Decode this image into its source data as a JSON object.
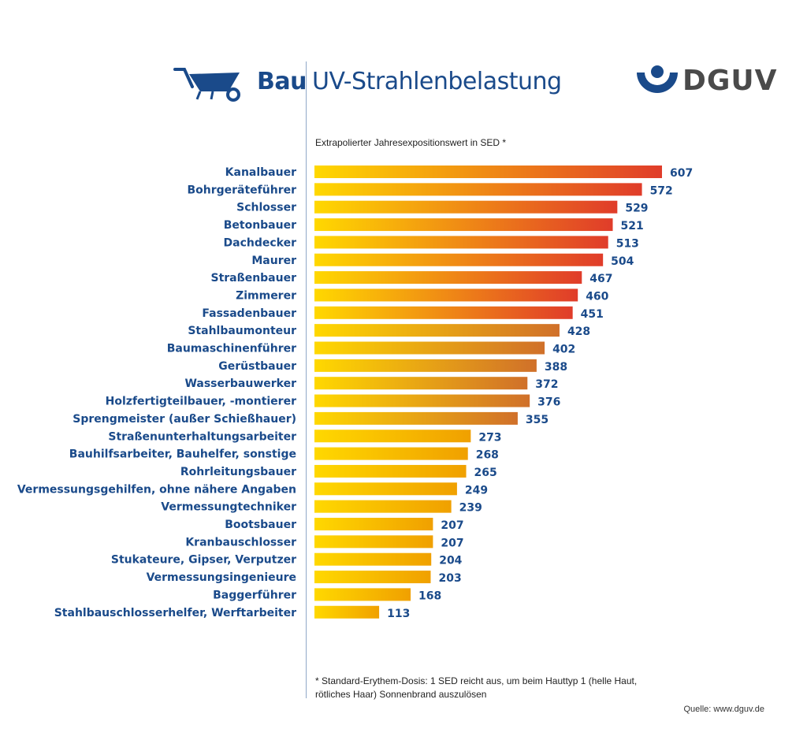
{
  "header": {
    "category": "Bau",
    "title": "UV-Strahlenbelastung",
    "logo_text": "DGUV",
    "icon": "wheelbarrow-icon"
  },
  "subtitle": "Extrapolierter Jahresexpositionswert in SED *",
  "footnote": "* Standard-Erythem-Dosis: 1 SED reicht aus, um beim Hauttyp 1 (helle Haut, rötliches Haar) Sonnenbrand auszulösen",
  "source": "Quelle: www.dguv.de",
  "colors": {
    "brand": "#1a4a8a",
    "bar_start": "#ffd800",
    "bar_end_high": "#e03c2a",
    "bar_end_mid": "#d0702a",
    "bar_end_low": "#f0a000"
  },
  "chart_data": {
    "type": "bar",
    "orientation": "horizontal",
    "categories": [
      "Kanalbauer",
      "Bohrgeräteführer",
      "Schlosser",
      "Betonbauer",
      "Dachdecker",
      "Maurer",
      "Straßenbauer",
      "Zimmerer",
      "Fassadenbauer",
      "Stahlbaumonteur",
      "Baumaschinenführer",
      "Gerüstbauer",
      "Wasserbauwerker",
      "Holzfertigteilbauer, -montierer",
      "Sprengmeister (außer Schießhauer)",
      "Straßenunterhaltungsarbeiter",
      "Bauhilfsarbeiter, Bauhelfer, sonstige",
      "Rohrleitungsbauer",
      "Vermessungsgehilfen, ohne nähere Angaben",
      "Vermessungtechniker",
      "Bootsbauer",
      "Kranbauschlosser",
      "Stukateure, Gipser, Verputzer",
      "Vermessungsingenieure",
      "Baggerführer",
      "Stahlbauschlosserhelfer, Werftarbeiter"
    ],
    "values": [
      607,
      572,
      529,
      521,
      513,
      504,
      467,
      460,
      451,
      428,
      402,
      388,
      372,
      376,
      355,
      273,
      268,
      265,
      249,
      239,
      207,
      207,
      204,
      203,
      168,
      113
    ],
    "value_labels": [
      "607",
      "572",
      "529",
      "521",
      "513",
      "504",
      "467",
      "460",
      "451",
      "428",
      "402",
      "388",
      "372",
      "376",
      "355",
      "273",
      "268",
      "265",
      "249",
      "239",
      "207",
      "207",
      "204",
      "203",
      "168",
      "113"
    ],
    "xlim": [
      0,
      607
    ],
    "grid": false,
    "legend": "none"
  }
}
